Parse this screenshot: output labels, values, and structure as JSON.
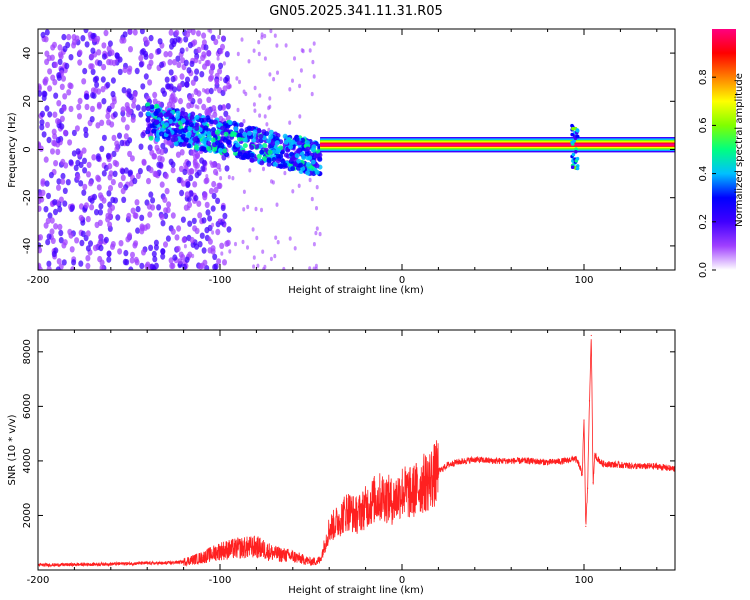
{
  "title": "GN05.2025.341.11.31.R05",
  "chart_data": [
    {
      "type": "heatmap",
      "name": "spectrogram",
      "xlabel": "Height of straight line (km)",
      "ylabel": "Frequency (Hz)",
      "xlim": [
        -200,
        150
      ],
      "ylim": [
        -50,
        50
      ],
      "xticks": [
        -200,
        -100,
        0,
        100
      ],
      "xtick_labels": [
        "-200",
        "-100",
        "0",
        "100"
      ],
      "yticks": [
        -40,
        -20,
        0,
        20,
        40
      ],
      "ytick_labels": [
        "-40",
        "-20",
        "0",
        "20",
        "40"
      ],
      "colorbar": {
        "label": "Normalized spectral amplitude",
        "range": [
          0,
          1
        ],
        "ticks": [
          0.0,
          0.2,
          0.4,
          0.6,
          0.8
        ],
        "tick_labels": [
          "0.0",
          "0.2",
          "0.4",
          "0.6",
          "0.8"
        ],
        "colors": [
          "#ffffff",
          "#a040ff",
          "#4000ff",
          "#0000ff",
          "#00c0ff",
          "#00ff80",
          "#80ff00",
          "#ffff00",
          "#ff8000",
          "#ff0000",
          "#ff0080"
        ]
      },
      "features": {
        "noise_region_x": [
          -200,
          -115
        ],
        "dispersed_band": {
          "x": [
            -140,
            -45
          ],
          "y_start": 12,
          "y_end": -4
        },
        "carrier_line": {
          "x": [
            -45,
            150
          ],
          "frequency_hz": 2
        },
        "spike": {
          "x": 95,
          "y_range": [
            -8,
            10
          ]
        }
      }
    },
    {
      "type": "line",
      "name": "snr",
      "xlabel": "Height of straight line (km)",
      "ylabel": "SNR (10 * v/v)",
      "xlim": [
        -200,
        150
      ],
      "ylim": [
        0,
        8800
      ],
      "xticks": [
        -200,
        -100,
        0,
        100
      ],
      "xtick_labels": [
        "-200",
        "-100",
        "0",
        "100"
      ],
      "yticks": [
        2000,
        4000,
        6000,
        8000
      ],
      "ytick_labels": [
        "2000",
        "4000",
        "6000",
        "8000"
      ],
      "color": "#ff2020",
      "series": [
        {
          "name": "SNR",
          "x": [
            -200,
            -180,
            -160,
            -140,
            -130,
            -120,
            -110,
            -100,
            -90,
            -80,
            -70,
            -60,
            -50,
            -45,
            -40,
            -35,
            -30,
            -25,
            -20,
            -15,
            -10,
            -5,
            0,
            5,
            10,
            15,
            20,
            25,
            30,
            35,
            40,
            50,
            60,
            70,
            80,
            90,
            95,
            97,
            99,
            100,
            101,
            102,
            103,
            104,
            105,
            106,
            110,
            120,
            130,
            140,
            150
          ],
          "values": [
            180,
            200,
            220,
            250,
            250,
            300,
            450,
            700,
            800,
            850,
            600,
            500,
            300,
            350,
            1500,
            1800,
            2200,
            2000,
            2300,
            2600,
            2700,
            2500,
            2900,
            2800,
            3100,
            3300,
            3600,
            3850,
            3950,
            4000,
            4050,
            4000,
            4000,
            4000,
            3950,
            4000,
            4100,
            3900,
            3500,
            5500,
            1600,
            3000,
            6200,
            8600,
            3200,
            4200,
            3900,
            3850,
            3800,
            3800,
            3700
          ]
        }
      ]
    }
  ]
}
